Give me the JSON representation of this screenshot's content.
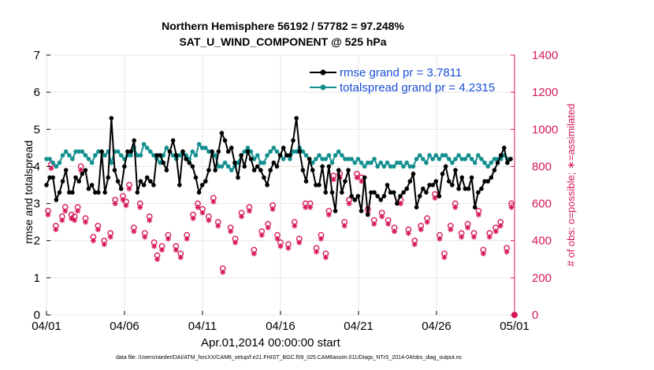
{
  "title": {
    "line1": "Northern Hemisphere 56192 / 57782 = 97.248%",
    "line2": "SAT_U_WIND_COMPONENT @ 525 hPa"
  },
  "xlabel": "Apr.01,2014 00:00:00 start",
  "ylabel_left": "rmse and totalspread",
  "ylabel_right": "# of obs: o=possible; ∗=assimilated",
  "footnote": "data file: /Users/raeder/DAI/ATM_forcXX/CAM6_setup/f.e21.FHIST_BGC.f09_025.CAM6assim.011/Diags_NTrS_2014-04/obs_diag_output.nc",
  "colors": {
    "rmse": "#000000",
    "spread": "#138f8f",
    "obs": "#d6195b",
    "legend_text": "#1a4fd6"
  },
  "chart_data": {
    "type": "line",
    "x_ticks": [
      {
        "day": 1,
        "label": "04/01"
      },
      {
        "day": 6,
        "label": "04/06"
      },
      {
        "day": 11,
        "label": "04/11"
      },
      {
        "day": 16,
        "label": "04/16"
      },
      {
        "day": 21,
        "label": "04/21"
      },
      {
        "day": 26,
        "label": "04/26"
      },
      {
        "day": 31,
        "label": "05/01"
      }
    ],
    "xlim_days": [
      1,
      31
    ],
    "ylim_left": [
      0,
      7
    ],
    "yticks_left": [
      0,
      1,
      2,
      3,
      4,
      5,
      6,
      7
    ],
    "ylim_right": [
      0,
      1400
    ],
    "yticks_right": [
      0,
      200,
      400,
      600,
      800,
      1000,
      1200,
      1400
    ],
    "grid": true,
    "legend_placement": "top-right",
    "series": [
      {
        "name": "rmse grand pr = 3.7811",
        "axis": "left",
        "values": [
          3.5,
          3.7,
          3.7,
          3.1,
          3.3,
          3.6,
          3.9,
          3.3,
          3.3,
          3.7,
          3.6,
          3.8,
          3.9,
          3.4,
          3.5,
          3.3,
          3.3,
          4.4,
          3.3,
          3.7,
          5.3,
          3.9,
          3.6,
          3.4,
          4.0,
          4.4,
          4.4,
          4.7,
          3.3,
          3.6,
          3.5,
          3.7,
          3.6,
          3.5,
          4.3,
          4.3,
          4.1,
          3.9,
          4.4,
          4.7,
          4.3,
          3.5,
          4.4,
          4.2,
          4.1,
          4.0,
          3.7,
          3.3,
          3.5,
          3.6,
          3.9,
          4.4,
          3.9,
          4.4,
          4.9,
          4.7,
          4.4,
          4.5,
          4.1,
          3.7,
          4.3,
          4.0,
          4.4,
          4.2,
          3.9,
          4.0,
          3.9,
          3.7,
          3.5,
          3.9,
          4.1,
          4.0,
          4.3,
          4.5,
          4.3,
          4.3,
          4.7,
          5.3,
          4.4,
          3.9,
          3.6,
          4.2,
          3.9,
          3.5,
          3.5,
          4.0,
          3.3,
          4.0,
          3.3,
          2.8,
          3.9,
          3.3,
          3.6,
          3.9,
          3.2,
          3.1,
          3.2,
          2.8,
          3.7,
          2.7,
          3.3,
          3.3,
          3.2,
          3.1,
          3.2,
          3.5,
          3.3,
          3.3,
          3.0,
          3.2,
          3.3,
          3.4,
          3.6,
          3.8,
          2.9,
          3.2,
          3.4,
          3.3,
          3.5,
          3.5,
          3.6,
          3.2,
          3.8,
          4.0,
          3.6,
          3.5,
          3.9,
          3.4,
          3.7,
          3.4,
          3.4,
          3.7,
          2.9,
          3.3,
          3.4,
          3.6,
          3.6,
          3.7,
          3.9,
          4.1,
          4.3,
          4.5,
          4.1,
          4.2
        ]
      },
      {
        "name": "totalspread grand pr = 4.2315",
        "axis": "left",
        "values": [
          4.2,
          4.2,
          4.1,
          4.0,
          4.1,
          4.3,
          4.4,
          4.3,
          4.2,
          4.4,
          4.4,
          4.4,
          4.3,
          4.2,
          4.1,
          4.3,
          4.4,
          4.4,
          4.3,
          4.4,
          4.1,
          4.4,
          4.4,
          4.3,
          4.2,
          4.3,
          4.3,
          4.5,
          4.3,
          4.3,
          4.6,
          4.5,
          4.4,
          4.3,
          4.2,
          4.1,
          4.3,
          4.5,
          4.4,
          4.3,
          4.2,
          4.3,
          4.4,
          4.3,
          4.2,
          4.4,
          4.3,
          4.6,
          4.5,
          4.5,
          4.4,
          4.4,
          4.3,
          4.0,
          4.0,
          4.1,
          4.0,
          3.9,
          4.0,
          4.1,
          4.3,
          4.4,
          4.5,
          4.4,
          4.2,
          4.3,
          4.1,
          4.1,
          4.3,
          4.4,
          4.5,
          4.4,
          4.3,
          4.2,
          4.3,
          4.2,
          4.4,
          4.4,
          4.5,
          4.4,
          4.3,
          4.2,
          4.1,
          4.2,
          4.3,
          4.2,
          4.2,
          4.3,
          4.1,
          4.3,
          4.4,
          4.3,
          4.2,
          4.2,
          4.2,
          4.1,
          4.2,
          4.1,
          4.0,
          4.1,
          4.1,
          4.2,
          4.0,
          4.1,
          4.0,
          4.1,
          4.0,
          4.0,
          4.1,
          4.1,
          4.0,
          4.1,
          4.0,
          4.0,
          4.2,
          4.3,
          4.2,
          4.1,
          4.3,
          4.2,
          4.3,
          4.2,
          4.3,
          4.3,
          4.2,
          4.1,
          4.2,
          4.3,
          4.2,
          4.2,
          4.3,
          4.2,
          4.1,
          4.3,
          4.2,
          4.1,
          4.0,
          4.1,
          4.2,
          4.2,
          4.2,
          4.3,
          4.2,
          4.2
        ]
      },
      {
        "name": "possible",
        "axis": "right",
        "marker": "circle",
        "x_days": [
          1.1,
          1.3,
          1.6,
          2.0,
          2.2,
          2.6,
          2.8,
          3.0,
          3.2,
          3.5,
          4.0,
          4.3,
          4.7,
          5.1,
          5.4,
          5.9,
          6.1,
          6.3,
          6.6,
          7.0,
          7.3,
          7.6,
          7.9,
          8.1,
          8.4,
          8.8,
          9.3,
          9.6,
          10.0,
          10.4,
          10.7,
          11.0,
          11.4,
          11.7,
          12.0,
          12.3,
          12.8,
          13.1,
          13.5,
          14.0,
          14.3,
          14.8,
          15.2,
          15.5,
          15.8,
          16.0,
          16.5,
          16.9,
          17.2,
          17.6,
          17.9,
          18.3,
          18.6,
          18.9,
          19.1,
          19.4,
          19.8,
          20.1,
          20.4,
          20.9,
          21.2,
          21.6,
          22.0,
          22.5,
          22.9,
          23.3,
          23.7,
          24.2,
          24.6,
          25.0,
          25.4,
          25.9,
          26.2,
          26.5,
          26.9,
          27.2,
          27.6,
          28.0,
          28.4,
          28.7,
          29.0,
          29.4,
          29.8,
          30.1,
          30.5,
          30.8
        ],
        "values": [
          560,
          810,
          480,
          530,
          580,
          540,
          530,
          580,
          800,
          520,
          420,
          480,
          400,
          440,
          620,
          640,
          610,
          700,
          470,
          600,
          440,
          530,
          390,
          320,
          370,
          430,
          370,
          330,
          430,
          540,
          600,
          570,
          530,
          630,
          500,
          250,
          470,
          410,
          550,
          580,
          350,
          450,
          490,
          590,
          430,
          390,
          380,
          500,
          410,
          600,
          600,
          360,
          430,
          330,
          560,
          750,
          760,
          500,
          620,
          760,
          740,
          570,
          510,
          550,
          510,
          470,
          620,
          460,
          400,
          480,
          520,
          650,
          430,
          330,
          480,
          600,
          440,
          490,
          440,
          560,
          350,
          440,
          470,
          500,
          360,
          600
        ]
      },
      {
        "name": "assimilated",
        "axis": "right",
        "marker": "asterisk",
        "x_days": [
          1.1,
          1.3,
          1.6,
          2.0,
          2.2,
          2.6,
          2.8,
          3.0,
          3.2,
          3.5,
          4.0,
          4.3,
          4.7,
          5.1,
          5.4,
          5.9,
          6.1,
          6.3,
          6.6,
          7.0,
          7.3,
          7.6,
          7.9,
          8.1,
          8.4,
          8.8,
          9.3,
          9.6,
          10.0,
          10.4,
          10.7,
          11.0,
          11.4,
          11.7,
          12.0,
          12.3,
          12.8,
          13.1,
          13.5,
          14.0,
          14.3,
          14.8,
          15.2,
          15.5,
          15.8,
          16.0,
          16.5,
          16.9,
          17.2,
          17.6,
          17.9,
          18.3,
          18.6,
          18.9,
          19.1,
          19.4,
          19.8,
          20.1,
          20.4,
          20.9,
          21.2,
          21.6,
          22.0,
          22.5,
          22.9,
          23.3,
          23.7,
          24.2,
          24.6,
          25.0,
          25.4,
          25.9,
          26.2,
          26.5,
          26.9,
          27.2,
          27.6,
          28.0,
          28.4,
          28.7,
          29.0,
          29.4,
          29.8,
          30.1,
          30.5,
          30.8
        ],
        "values": [
          540,
          790,
          460,
          510,
          560,
          520,
          510,
          560,
          780,
          500,
          400,
          460,
          380,
          420,
          600,
          620,
          590,
          680,
          450,
          580,
          420,
          510,
          370,
          300,
          350,
          410,
          350,
          310,
          410,
          520,
          580,
          550,
          510,
          610,
          480,
          230,
          450,
          390,
          530,
          560,
          330,
          430,
          470,
          570,
          410,
          370,
          360,
          480,
          390,
          580,
          580,
          340,
          410,
          310,
          540,
          730,
          740,
          480,
          600,
          740,
          720,
          550,
          490,
          530,
          490,
          450,
          600,
          440,
          380,
          460,
          500,
          630,
          410,
          310,
          460,
          580,
          420,
          470,
          420,
          540,
          330,
          420,
          450,
          480,
          340,
          580
        ]
      }
    ]
  }
}
